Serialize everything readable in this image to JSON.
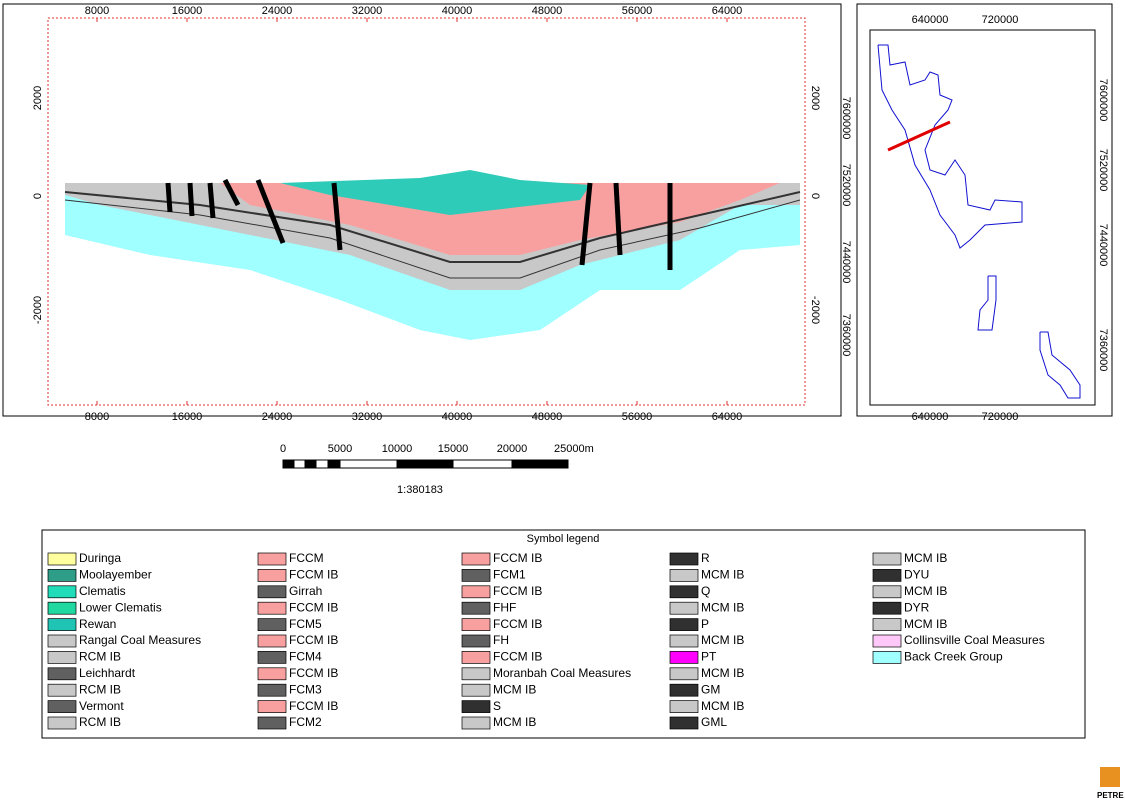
{
  "section": {
    "xticks": [
      8000,
      16000,
      24000,
      32000,
      40000,
      48000,
      56000,
      64000
    ],
    "yticks": [
      2000,
      0,
      -2000
    ]
  },
  "map": {
    "xticks": [
      640000,
      720000
    ],
    "yticks": [
      7600000,
      7520000,
      7440000,
      7360000
    ]
  },
  "scale_bar": {
    "labels": [
      0,
      5000,
      10000,
      15000,
      20000,
      "25000m"
    ],
    "ratio": "1:380183"
  },
  "legend": {
    "title": "Symbol legend",
    "columns": [
      [
        {
          "label": "Duringa",
          "color": "#ffffa0"
        },
        {
          "label": "Moolayember",
          "color": "#2e9e88"
        },
        {
          "label": "Clematis",
          "color": "#20dcb8"
        },
        {
          "label": "Lower Clematis",
          "color": "#20d8a0"
        },
        {
          "label": "Rewan",
          "color": "#20c4b4"
        },
        {
          "label": "Rangal Coal Measures",
          "color": "#c8c8c8"
        },
        {
          "label": "RCM IB",
          "color": "#c8c8c8"
        },
        {
          "label": "Leichhardt",
          "color": "#606060"
        },
        {
          "label": "RCM IB",
          "color": "#c8c8c8"
        },
        {
          "label": "Vermont",
          "color": "#606060"
        },
        {
          "label": "RCM IB",
          "color": "#c8c8c8"
        }
      ],
      [
        {
          "label": "FCCM",
          "color": "#f8a0a0"
        },
        {
          "label": "FCCM IB",
          "color": "#f8a0a0"
        },
        {
          "label": "Girrah",
          "color": "#606060"
        },
        {
          "label": "FCCM IB",
          "color": "#f8a0a0"
        },
        {
          "label": "FCM5",
          "color": "#606060"
        },
        {
          "label": "FCCM IB",
          "color": "#f8a0a0"
        },
        {
          "label": "FCM4",
          "color": "#606060"
        },
        {
          "label": "FCCM IB",
          "color": "#f8a0a0"
        },
        {
          "label": "FCM3",
          "color": "#606060"
        },
        {
          "label": "FCCM IB",
          "color": "#f8a0a0"
        },
        {
          "label": "FCM2",
          "color": "#606060"
        }
      ],
      [
        {
          "label": "FCCM IB",
          "color": "#f8a0a0"
        },
        {
          "label": "FCM1",
          "color": "#606060"
        },
        {
          "label": "FCCM IB",
          "color": "#f8a0a0"
        },
        {
          "label": "FHF",
          "color": "#606060"
        },
        {
          "label": "FCCM IB",
          "color": "#f8a0a0"
        },
        {
          "label": "FH",
          "color": "#606060"
        },
        {
          "label": "FCCM IB",
          "color": "#f8a0a0"
        },
        {
          "label": "Moranbah Coal Measures",
          "color": "#c8c8c8"
        },
        {
          "label": "MCM IB",
          "color": "#c8c8c8"
        },
        {
          "label": "S",
          "color": "#303030"
        },
        {
          "label": "MCM IB",
          "color": "#c8c8c8"
        }
      ],
      [
        {
          "label": "R",
          "color": "#303030"
        },
        {
          "label": "MCM IB",
          "color": "#c8c8c8"
        },
        {
          "label": "Q",
          "color": "#303030"
        },
        {
          "label": "MCM IB",
          "color": "#c8c8c8"
        },
        {
          "label": "P",
          "color": "#303030"
        },
        {
          "label": "MCM IB",
          "color": "#c8c8c8"
        },
        {
          "label": "PT",
          "color": "#ff00ff"
        },
        {
          "label": "MCM IB",
          "color": "#c8c8c8"
        },
        {
          "label": "GM",
          "color": "#303030"
        },
        {
          "label": "MCM IB",
          "color": "#c8c8c8"
        },
        {
          "label": "GML",
          "color": "#303030"
        }
      ],
      [
        {
          "label": "MCM IB",
          "color": "#c8c8c8"
        },
        {
          "label": "DYU",
          "color": "#303030"
        },
        {
          "label": "MCM IB",
          "color": "#c8c8c8"
        },
        {
          "label": "DYR",
          "color": "#303030"
        },
        {
          "label": "MCM IB",
          "color": "#c8c8c8"
        },
        {
          "label": "Collinsville Coal Measures",
          "color": "#ffc8f8"
        },
        {
          "label": "Back Creek Group",
          "color": "#a0ffff"
        }
      ]
    ]
  },
  "logo": "PETRE"
}
